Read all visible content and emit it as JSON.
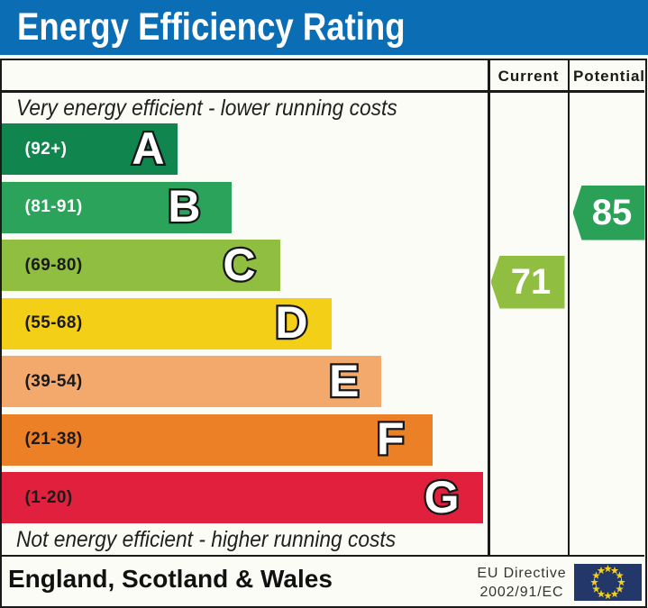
{
  "title": "Energy Efficiency Rating",
  "table": {
    "columns": {
      "current": "Current",
      "potential": "Potential"
    },
    "top_note": "Very energy efficient - lower running costs",
    "bottom_note": "Not energy efficient - higher running costs"
  },
  "bands": [
    {
      "letter": "A",
      "range_label": "(92+)",
      "color": "#10854e",
      "bar_width": 194.5,
      "letter_margin": 14,
      "label_color": "#ffffff"
    },
    {
      "letter": "B",
      "range_label": "(81-91)",
      "color": "#2ca35a",
      "bar_width": 254.5,
      "letter_margin": 34,
      "label_color": "#ffffff"
    },
    {
      "letter": "C",
      "range_label": "(69-80)",
      "color": "#8fbe41",
      "bar_width": 308.5,
      "letter_margin": 27,
      "label_color": "#1a1a1a"
    },
    {
      "letter": "D",
      "range_label": "(55-68)",
      "color": "#f4cf18",
      "bar_width": 365.5,
      "letter_margin": 26,
      "label_color": "#1a1a1a"
    },
    {
      "letter": "E",
      "range_label": "(39-54)",
      "color": "#f2a96b",
      "bar_width": 420.5,
      "letter_margin": 24,
      "label_color": "#1a1a1a"
    },
    {
      "letter": "F",
      "range_label": "(21-38)",
      "color": "#ec8026",
      "bar_width": 477.5,
      "letter_margin": 31,
      "label_color": "#1a1a1a"
    },
    {
      "letter": "G",
      "range_label": "(1-20)",
      "color": "#e0203d",
      "bar_width": 533.5,
      "letter_margin": 26,
      "label_color": "#1a1a1a"
    }
  ],
  "ratings": {
    "current": {
      "label": "71",
      "value": 71,
      "band": "C",
      "color": "#8fbe41"
    },
    "potential": {
      "label": "85",
      "value": 85,
      "band": "B",
      "color": "#2ba158"
    }
  },
  "footer": {
    "region": "England, Scotland & Wales",
    "directive_line1": "EU Directive",
    "directive_line2": "2002/91/EC"
  },
  "flag": {
    "background": "#233768",
    "star_color": "#efce25",
    "star_count": 12
  },
  "chart_data": {
    "type": "bar",
    "title": "Energy Efficiency Rating",
    "categories": [
      "A",
      "B",
      "C",
      "D",
      "E",
      "F",
      "G"
    ],
    "category_ranges": [
      "92+",
      "81-91",
      "69-80",
      "55-68",
      "39-54",
      "21-38",
      "1-20"
    ],
    "values": [
      193,
      253,
      307,
      364,
      419,
      476,
      532
    ],
    "bar_colors": [
      "#10854e",
      "#2ca35a",
      "#8fbe41",
      "#f4cf18",
      "#f2a96b",
      "#ec8026",
      "#e0203d"
    ],
    "current_rating": 71,
    "current_band": "C",
    "potential_rating": 85,
    "potential_band": "B",
    "columns": [
      "Current",
      "Potential"
    ],
    "annotations": [
      "Very energy efficient - lower running costs",
      "Not energy efficient - higher running costs",
      "England, Scotland & Wales",
      "EU Directive 2002/91/EC"
    ],
    "legend_position": "none",
    "grid": false
  }
}
